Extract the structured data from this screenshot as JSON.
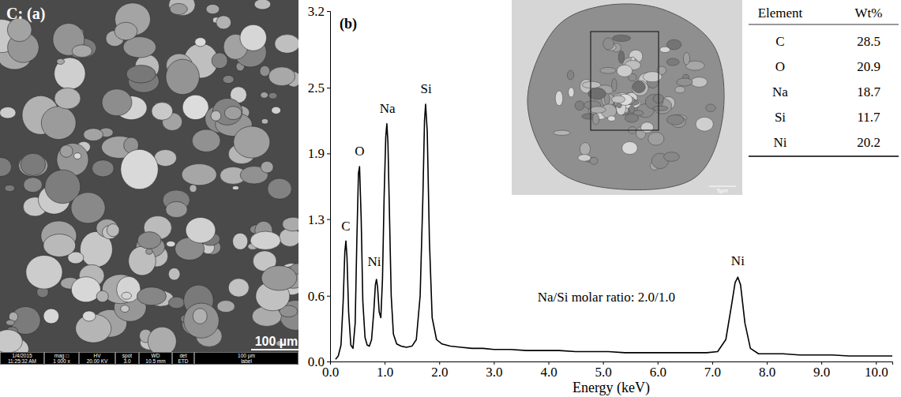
{
  "image_a": {
    "label": "C: (a)",
    "scale_bar": "100 µm",
    "info_bar": [
      {
        "head": "1/4/2015",
        "value": "11:25:32 AM"
      },
      {
        "head": "mag □",
        "value": "1 000 x"
      },
      {
        "head": "HV",
        "value": "20.00 KV"
      },
      {
        "head": "spot",
        "value": "3.0"
      },
      {
        "head": "WD",
        "value": "10.5 mm"
      },
      {
        "head": "det",
        "value": "ETD"
      },
      {
        "head": "100 µm",
        "value": "label"
      }
    ]
  },
  "chart_data": {
    "type": "line",
    "title": "(b)",
    "x_label": "Energy (keV)",
    "color": "#000000",
    "x": [
      0.1,
      0.15,
      0.2,
      0.24,
      0.27,
      0.29,
      0.31,
      0.34,
      0.38,
      0.42,
      0.46,
      0.49,
      0.52,
      0.54,
      0.57,
      0.6,
      0.64,
      0.68,
      0.72,
      0.76,
      0.8,
      0.83,
      0.85,
      0.87,
      0.9,
      0.93,
      0.96,
      0.99,
      1.02,
      1.04,
      1.06,
      1.09,
      1.12,
      1.16,
      1.22,
      1.3,
      1.4,
      1.5,
      1.58,
      1.65,
      1.7,
      1.73,
      1.75,
      1.78,
      1.82,
      1.87,
      1.95,
      2.05,
      2.2,
      2.4,
      2.6,
      2.8,
      3.0,
      3.3,
      3.6,
      3.9,
      4.2,
      4.5,
      4.8,
      5.1,
      5.4,
      5.7,
      6.0,
      6.3,
      6.6,
      6.9,
      7.1,
      7.25,
      7.35,
      7.42,
      7.47,
      7.52,
      7.6,
      7.7,
      7.85,
      8.0,
      8.3,
      8.6,
      8.9,
      9.2,
      9.5,
      9.8,
      10.1,
      10.3
    ],
    "values": [
      0.02,
      0.05,
      0.15,
      0.55,
      1.0,
      1.1,
      0.95,
      0.45,
      0.15,
      0.12,
      0.35,
      1.1,
      1.72,
      1.78,
      1.3,
      0.55,
      0.22,
      0.15,
      0.14,
      0.2,
      0.45,
      0.7,
      0.75,
      0.68,
      0.45,
      0.4,
      0.75,
      1.5,
      2.05,
      2.17,
      2.0,
      1.3,
      0.6,
      0.25,
      0.16,
      0.14,
      0.13,
      0.14,
      0.2,
      0.6,
      1.5,
      2.2,
      2.35,
      2.1,
      1.1,
      0.4,
      0.2,
      0.16,
      0.14,
      0.13,
      0.12,
      0.12,
      0.11,
      0.11,
      0.1,
      0.1,
      0.1,
      0.09,
      0.09,
      0.09,
      0.08,
      0.08,
      0.08,
      0.08,
      0.08,
      0.08,
      0.09,
      0.2,
      0.5,
      0.72,
      0.77,
      0.7,
      0.35,
      0.12,
      0.07,
      0.07,
      0.07,
      0.06,
      0.06,
      0.06,
      0.05,
      0.05,
      0.05,
      0.05
    ],
    "xlim": [
      0,
      10.3
    ],
    "xticks": [
      {
        "value": 0,
        "label": "0.0"
      },
      {
        "value": 1,
        "label": "1.0"
      },
      {
        "value": 2,
        "label": "2.0"
      },
      {
        "value": 3,
        "label": "3.0"
      },
      {
        "value": 4,
        "label": "4.0"
      },
      {
        "value": 5,
        "label": "5.0"
      },
      {
        "value": 6,
        "label": "6.0"
      },
      {
        "value": 7,
        "label": "7.0"
      },
      {
        "value": 8,
        "label": "8.0"
      },
      {
        "value": 9,
        "label": "9.0"
      },
      {
        "value": 10,
        "label": "10.0"
      }
    ],
    "ylim": [
      0,
      3.2
    ],
    "yticks": [
      {
        "value": 0,
        "label": "0.0"
      },
      0.6,
      1.3,
      1.9,
      2.5,
      3.2
    ],
    "grid": false,
    "annotations": [
      {
        "text": "C",
        "x": 0.29,
        "y": 1.2
      },
      {
        "text": "O",
        "x": 0.54,
        "y": 1.88
      },
      {
        "text": "Ni",
        "x": 0.81,
        "y": 0.87
      },
      {
        "text": "Na",
        "x": 1.05,
        "y": 2.27
      },
      {
        "text": "Si",
        "x": 1.76,
        "y": 2.45
      },
      {
        "text": "Ni",
        "x": 7.47,
        "y": 0.88
      },
      {
        "text": "Na/Si molar ratio: 2.0/1.0",
        "x": 3.8,
        "y": 0.55
      }
    ]
  },
  "inset": {
    "scale_bar": "5μm",
    "table": {
      "columns": [
        "Element",
        "Wt%"
      ],
      "rows": [
        [
          "C",
          28.5
        ],
        [
          "O",
          20.9
        ],
        [
          "Na",
          18.7
        ],
        [
          "Si",
          11.7
        ],
        [
          "Ni",
          20.2
        ]
      ]
    }
  }
}
